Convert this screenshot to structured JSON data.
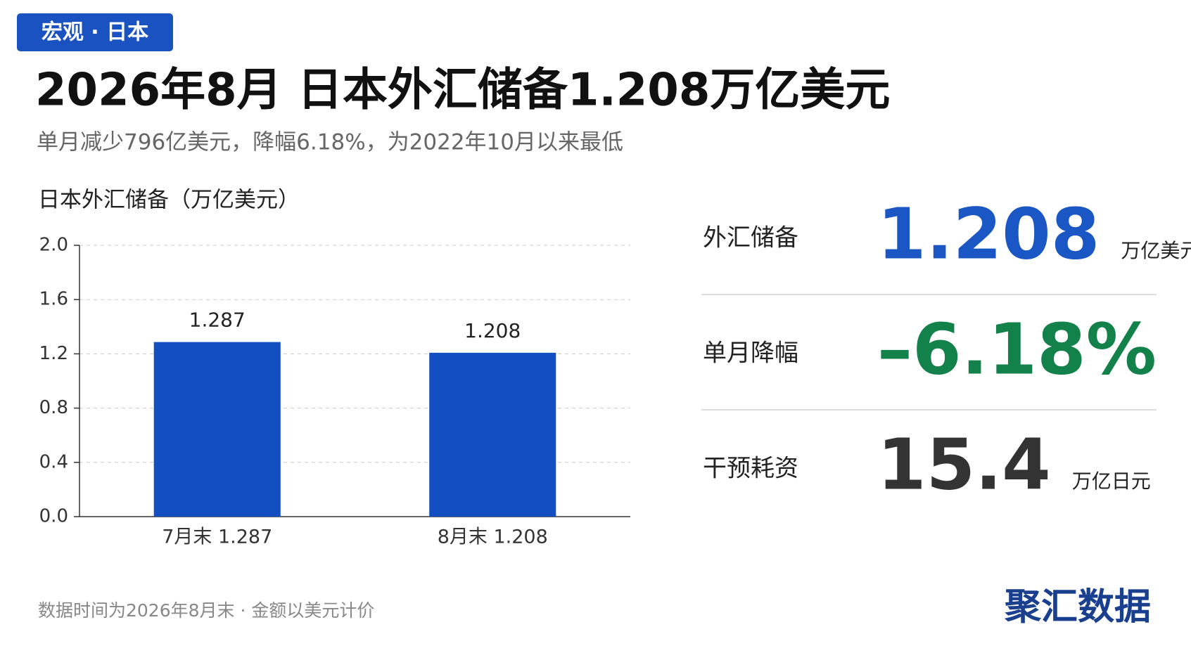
{
  "tag": "宏观 · 日本",
  "title": "2026年8月 日本外汇储备1.208万亿美元",
  "subtitle": "单月减少796亿美元，降幅6.18%，为2022年10月以来最低",
  "chart_data": {
    "type": "bar",
    "title": "日本外汇储备（万亿美元）",
    "categories": [
      "7月末 1.287",
      "8月末 1.208"
    ],
    "values": [
      1.287,
      1.208
    ],
    "color": "#144fc2",
    "ylim": [
      0,
      2
    ],
    "yticks": [
      {
        "value": 0,
        "label": "0.0"
      },
      0.4,
      0.8,
      1.2,
      1.6,
      {
        "value": 2,
        "label": "2.0"
      }
    ],
    "grid": true
  },
  "stats": [
    {
      "label": "外汇储备",
      "value": "1.208",
      "unit": "万亿美元",
      "color": "#1a56c4"
    },
    {
      "label": "单月降幅",
      "value": "–6.18%",
      "color": "#13814a"
    },
    {
      "label": "干预耗资",
      "value": "15.4",
      "unit": "万亿日元",
      "color": "#333333"
    }
  ],
  "footer": "数据时间为2026年8月末 · 金额以美元计价",
  "brand": "聚汇数据"
}
